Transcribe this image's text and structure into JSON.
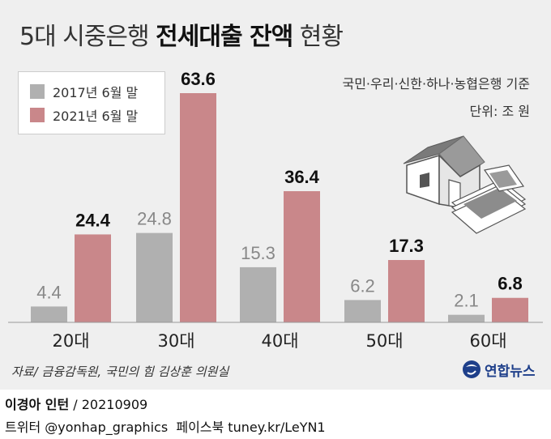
{
  "header": {
    "title_prefix": "5대 시중은행 ",
    "title_bold": "전세대출 잔액",
    "title_suffix": " 현황"
  },
  "basis_note": "국민·우리·신한·하나·농협은행 기준",
  "unit_note": "단위: 조 원",
  "source_note": "자료/ 금융감독원, 국민의 힘 김상훈 의원실",
  "brand": {
    "name": "연합뉴스",
    "logo_icon": "yonhap-logo-icon"
  },
  "credit": {
    "author": "이경아 인턴",
    "date": " / 20210909"
  },
  "social": {
    "twitter": "트위터 @yonhap_graphics",
    "facebook": "페이스북 tuney.kr/LeYN1"
  },
  "colors": {
    "series_2017": "#b0b0b0",
    "series_2021": "#c9878a",
    "background": "#efefef"
  },
  "chart_data": {
    "type": "bar",
    "title": "5대 시중은행 전세대출 잔액 현황",
    "unit": "조 원",
    "categories": [
      "20대",
      "30대",
      "40대",
      "50대",
      "60대"
    ],
    "series": [
      {
        "name": "2017년 6월 말",
        "values": [
          4.4,
          24.8,
          15.3,
          6.2,
          2.1
        ],
        "color": "#b0b0b0"
      },
      {
        "name": "2021년 6월 말",
        "values": [
          24.4,
          63.6,
          36.4,
          17.3,
          6.8
        ],
        "color": "#c9878a"
      }
    ],
    "ylim": [
      0,
      70
    ],
    "grid": false,
    "legend": "top-left",
    "decoration": "house-and-banknotes-illustration"
  }
}
